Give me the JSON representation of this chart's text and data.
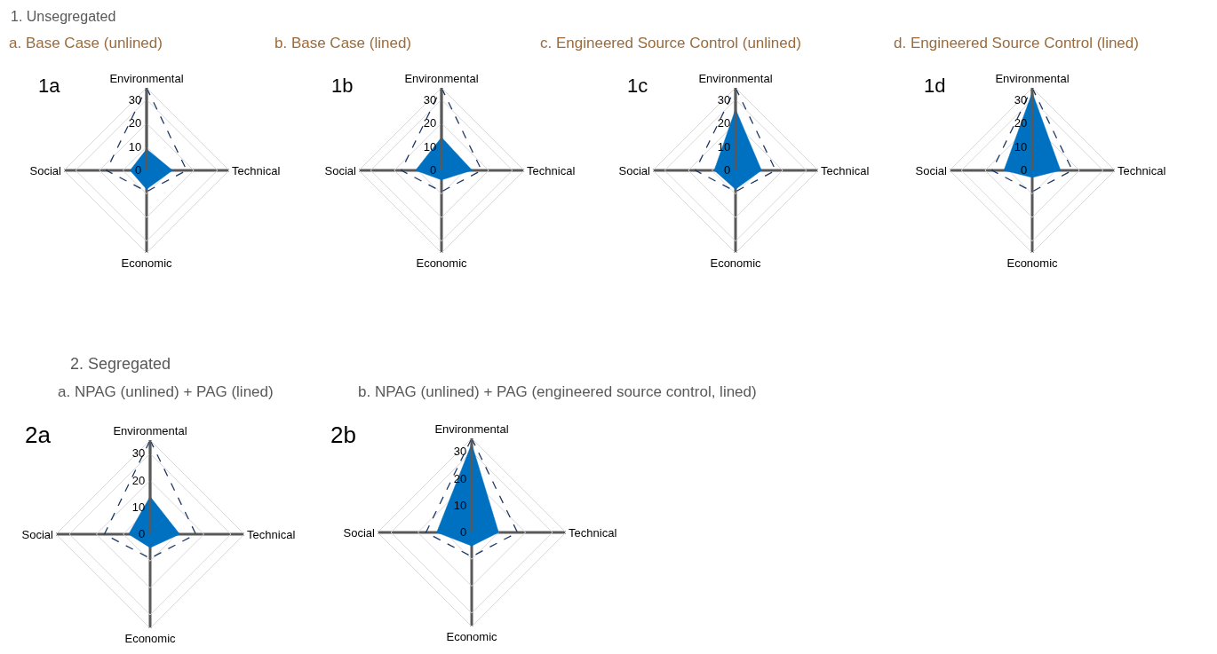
{
  "chart_data": [
    {
      "type": "radar",
      "subtitle": "1. Unsegregated",
      "title": "a. Base Case (unlined)",
      "annotations": [
        "1a"
      ],
      "categories": [
        "Environmental",
        "Technical",
        "Economic",
        "Social"
      ],
      "ylim": [
        0,
        35
      ],
      "yticks": [
        0,
        10,
        20,
        30
      ],
      "grid": true,
      "series": [
        {
          "color": "#0070c0",
          "values": [
            9,
            11,
            8,
            7
          ]
        },
        {
          "color": "#1f3864",
          "line_style": "dashed",
          "values": [
            35,
            17,
            9,
            17
          ]
        }
      ]
    },
    {
      "type": "radar",
      "title": "b. Base Case (lined)",
      "annotations": [
        "1b"
      ],
      "categories": [
        "Environmental",
        "Technical",
        "Economic",
        "Social"
      ],
      "ylim": [
        0,
        35
      ],
      "yticks": [
        0,
        10,
        20,
        30
      ],
      "grid": true,
      "series": [
        {
          "color": "#0070c0",
          "values": [
            14,
            13,
            4,
            11
          ]
        },
        {
          "color": "#1f3864",
          "line_style": "dashed",
          "values": [
            35,
            17,
            9,
            17
          ]
        }
      ]
    },
    {
      "type": "radar",
      "title": "c. Engineered Source Control (unlined)",
      "annotations": [
        "1c"
      ],
      "categories": [
        "Environmental",
        "Technical",
        "Economic",
        "Social"
      ],
      "ylim": [
        0,
        35
      ],
      "yticks": [
        0,
        10,
        20,
        30
      ],
      "grid": true,
      "series": [
        {
          "color": "#0070c0",
          "values": [
            26,
            11,
            8,
            9
          ]
        },
        {
          "color": "#1f3864",
          "line_style": "dashed",
          "values": [
            35,
            17,
            9,
            17
          ]
        }
      ]
    },
    {
      "type": "radar",
      "title": "d. Engineered Source Control (lined)",
      "annotations": [
        "1d"
      ],
      "categories": [
        "Environmental",
        "Technical",
        "Economic",
        "Social"
      ],
      "ylim": [
        0,
        35
      ],
      "yticks": [
        0,
        10,
        20,
        30
      ],
      "grid": true,
      "series": [
        {
          "color": "#0070c0",
          "values": [
            33,
            12,
            3,
            12
          ]
        },
        {
          "color": "#1f3864",
          "line_style": "dashed",
          "values": [
            35,
            17,
            9,
            17
          ]
        }
      ]
    },
    {
      "type": "radar",
      "subtitle": "2. Segregated",
      "title": "a. NPAG (unlined) + PAG (lined)",
      "annotations": [
        "2a"
      ],
      "categories": [
        "Environmental",
        "Technical",
        "Economic",
        "Social"
      ],
      "ylim": [
        0,
        35
      ],
      "yticks": [
        0,
        10,
        20,
        30
      ],
      "grid": true,
      "series": [
        {
          "color": "#0070c0",
          "values": [
            14,
            11,
            5,
            8
          ]
        },
        {
          "color": "#1f3864",
          "line_style": "dashed",
          "values": [
            35,
            17,
            9,
            17
          ]
        }
      ]
    },
    {
      "type": "radar",
      "title": "b. NPAG (unlined) + PAG (engineered source control, lined)",
      "annotations": [
        "2b"
      ],
      "categories": [
        "Environmental",
        "Technical",
        "Economic",
        "Social"
      ],
      "ylim": [
        0,
        35
      ],
      "yticks": [
        0,
        10,
        20,
        30
      ],
      "grid": true,
      "series": [
        {
          "color": "#0070c0",
          "values": [
            33,
            10,
            5,
            13
          ]
        },
        {
          "color": "#1f3864",
          "line_style": "dashed",
          "values": [
            35,
            17,
            9,
            17
          ]
        }
      ]
    }
  ]
}
